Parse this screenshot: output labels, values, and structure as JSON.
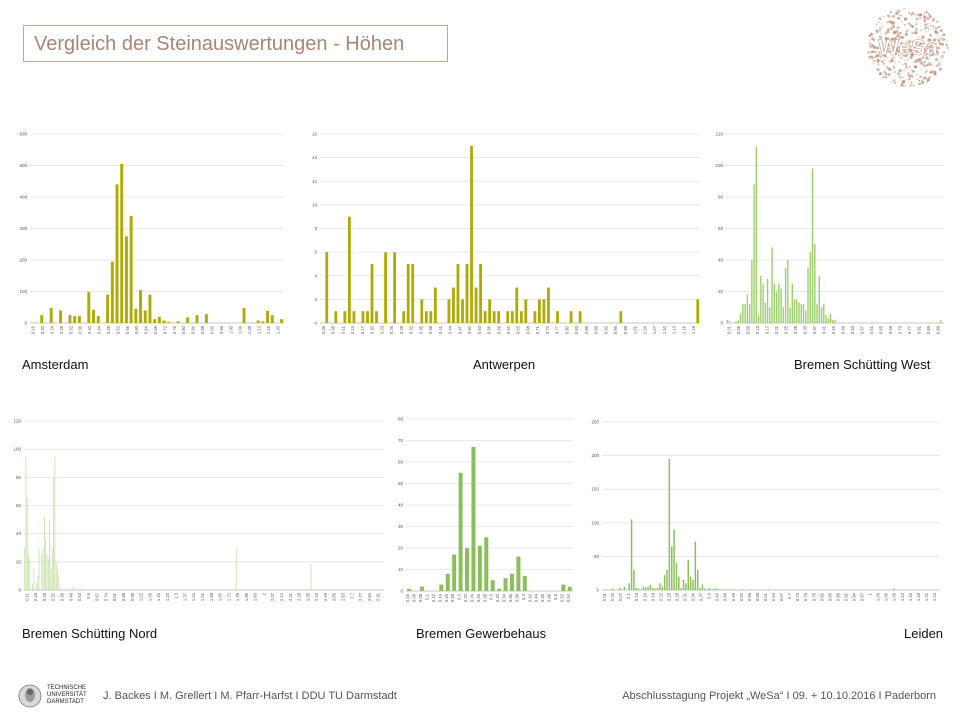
{
  "title": "Vergleich der Steinauswertungen - Höhen",
  "logo_text": "WeSa",
  "footer_left": "J. Backes I M. Grellert I M. Pfarr-Harfst I DDU TU Darmstadt",
  "footer_right": "Abschlusstagung Projekt „WeSa“ I 09. + 10.10.2016 I Paderborn",
  "university_logo_text": [
    "TECHNISCHE",
    "UNIVERSITÄT",
    "DARMSTADT"
  ],
  "colors": {
    "olive": "#b0aa05",
    "light_green": "#9ccf6c",
    "mid_green": "#8bbf5a",
    "title": "#a98477",
    "logo": "#c49a88"
  },
  "chart_data": [
    {
      "type": "bar",
      "title": "Amsterdam",
      "color": "#b0aa05",
      "ylim": [
        0,
        600
      ],
      "yticks": [
        0,
        100,
        200,
        300,
        400,
        500,
        600
      ],
      "grid": true,
      "xtick_labels": [
        "0.16",
        "0.20",
        "0.24",
        "0.28",
        "0.32",
        "0.36",
        "0.40",
        "0.44",
        "0.48",
        "0.52",
        "0.56",
        "0.60",
        "0.64",
        "0.68",
        "0.72",
        "0.76",
        "0.80",
        "0.84",
        "0.88",
        "0.92",
        "0.96",
        "1.00",
        "1.04",
        "1.08",
        "1.12",
        "1.16",
        "1.20"
      ],
      "values": [
        0,
        0,
        25,
        0,
        48,
        0,
        40,
        0,
        25,
        22,
        22,
        0,
        98,
        42,
        22,
        0,
        90,
        195,
        440,
        505,
        275,
        340,
        45,
        105,
        40,
        90,
        12,
        20,
        8,
        3,
        0,
        5,
        0,
        18,
        0,
        25,
        0,
        28,
        0,
        0,
        0,
        0,
        0,
        0,
        0,
        48,
        0,
        0,
        8,
        5,
        38,
        25,
        0,
        12
      ]
    },
    {
      "type": "bar",
      "title": "Antwerpen",
      "color": "#b0aa05",
      "ylim": [
        0,
        16
      ],
      "yticks": [
        0,
        2,
        4,
        6,
        8,
        10,
        12,
        14,
        16
      ],
      "grid": true,
      "xtick_labels": [
        "0.06",
        "0.08",
        "0.11",
        "0.14",
        "0.17",
        "0.20",
        "0.23",
        "0.26",
        "0.29",
        "0.32",
        "0.35",
        "0.38",
        "0.41",
        "0.44",
        "0.47",
        "0.50",
        "0.53",
        "0.56",
        "0.59",
        "0.62",
        "0.65",
        "0.68",
        "0.71",
        "0.74",
        "0.77",
        "0.80",
        "0.83",
        "0.86",
        "0.89",
        "0.92",
        "0.95",
        "0.98",
        "1.01",
        "1.04",
        "1.07",
        "1.10",
        "1.13",
        "1.16",
        "1.19"
      ],
      "values": [
        0,
        6,
        0,
        1,
        0,
        1,
        9,
        1,
        0,
        1,
        1,
        5,
        1,
        0,
        6,
        0,
        6,
        0,
        1,
        5,
        5,
        0,
        2,
        1,
        1,
        3,
        0,
        0,
        2,
        3,
        5,
        2,
        5,
        15,
        3,
        5,
        1,
        2,
        1,
        1,
        0,
        1,
        1,
        3,
        1,
        2,
        0,
        1,
        2,
        2,
        3,
        0,
        1,
        0,
        0,
        1,
        0,
        1,
        0,
        0,
        0,
        0,
        0,
        0,
        0,
        0,
        1,
        0,
        0,
        0,
        0,
        0,
        0,
        0,
        0,
        0,
        0,
        0,
        0,
        0,
        0,
        0,
        0,
        2
      ]
    },
    {
      "type": "bar",
      "title": "Bremen Schütting West",
      "color": "#9ccf6c",
      "ylim": [
        0,
        120
      ],
      "yticks": [
        0,
        20,
        40,
        60,
        80,
        100,
        120
      ],
      "grid": true,
      "xtick_labels": [
        "0.01",
        "0.05",
        "0.09",
        "0.13",
        "0.17",
        "0.21",
        "0.25",
        "0.29",
        "0.33",
        "0.37",
        "0.41",
        "0.45",
        "0.49",
        "0.53",
        "0.57",
        "0.61",
        "0.65",
        "0.69",
        "0.73",
        "0.77",
        "0.81",
        "0.85",
        "0.89"
      ],
      "values": [
        2,
        1,
        0,
        0,
        1,
        2,
        6,
        12,
        12,
        18,
        12,
        40,
        88,
        112,
        5,
        30,
        25,
        13,
        28,
        10,
        48,
        25,
        20,
        25,
        22,
        10,
        35,
        40,
        10,
        25,
        15,
        15,
        13,
        12,
        12,
        8,
        35,
        45,
        98,
        50,
        12,
        30,
        10,
        12,
        5,
        3,
        6,
        2,
        2,
        0,
        0,
        0,
        0,
        0,
        0,
        0,
        0,
        0,
        0,
        0,
        0,
        0,
        0,
        0,
        0,
        0,
        0,
        0,
        0,
        0,
        0,
        0,
        0,
        0,
        0,
        0,
        0,
        0,
        0,
        0,
        0,
        0,
        0,
        0,
        0,
        0,
        0,
        0,
        0,
        0,
        0,
        0,
        0,
        0,
        0,
        2,
        0
      ]
    },
    {
      "type": "bar",
      "title": "Bremen Schütting Nord",
      "color": "#c5e0a5",
      "ylim": [
        0,
        120
      ],
      "yticks": [
        0,
        20,
        40,
        60,
        80,
        100,
        120
      ],
      "grid": true,
      "xtick_labels": [
        "0.11",
        "0.18",
        "0.25",
        "0.32",
        "0.39",
        "0.46",
        "0.53",
        "0.6",
        "0.67",
        "0.74",
        "0.81",
        "0.88",
        "0.95",
        "1.02",
        "1.09",
        "1.16",
        "1.23",
        "1.3",
        "1.37",
        "1.44",
        "1.51",
        "1.58",
        "1.65",
        "1.72",
        "1.79",
        "1.86",
        "1.93",
        "2",
        "2.07",
        "2.14",
        "2.21",
        "2.28",
        "2.35",
        "2.42",
        "2.49",
        "2.56",
        "2.63",
        "2.7",
        "2.77",
        "2.84",
        "2.91"
      ],
      "values": [
        30,
        95,
        65,
        25,
        20,
        0,
        4,
        15,
        0,
        5,
        10,
        30,
        0,
        25,
        30,
        52,
        35,
        25,
        22,
        50,
        15,
        30,
        80,
        95,
        20,
        15,
        10,
        0,
        1,
        0,
        1,
        0,
        0,
        1,
        1,
        0,
        0,
        3,
        0,
        0,
        0,
        0,
        0,
        1,
        1,
        0,
        0,
        0,
        0,
        0,
        0,
        0,
        0,
        0,
        0,
        0,
        0,
        0,
        0,
        0,
        0,
        0,
        0,
        0,
        0,
        0,
        0,
        0,
        0,
        0,
        0,
        0,
        0,
        0,
        0,
        0,
        0,
        0,
        0,
        0,
        0,
        0,
        0,
        0,
        0,
        0,
        0,
        0,
        0,
        0,
        0,
        0,
        0,
        0,
        0,
        0,
        0,
        0,
        0,
        0,
        0,
        0,
        0,
        0,
        0,
        0,
        0,
        0,
        0,
        0,
        0,
        0,
        0,
        0,
        0,
        0,
        0,
        0,
        0,
        0,
        0,
        0,
        0,
        0,
        0,
        0,
        0,
        0,
        0,
        0,
        0,
        0,
        0,
        0,
        0,
        0,
        0,
        0,
        0,
        0,
        0,
        0,
        0,
        0,
        0,
        0,
        0,
        0,
        0,
        0,
        0,
        0,
        0,
        0,
        0,
        0,
        0,
        0,
        0,
        0,
        0,
        30,
        0,
        0,
        0,
        0,
        0,
        0,
        0,
        0,
        0,
        0,
        0,
        0,
        0,
        0,
        0,
        0,
        0,
        0,
        0,
        0,
        0,
        0,
        0,
        0,
        0,
        0,
        0,
        0,
        0,
        0,
        0,
        0,
        0,
        0,
        0,
        0,
        0,
        0,
        0,
        0,
        0,
        0,
        0,
        0,
        0,
        0,
        0,
        0,
        0,
        0,
        0,
        0,
        0,
        0,
        0,
        0,
        18,
        0,
        0,
        0,
        0,
        0,
        0,
        0,
        0,
        0,
        0,
        0,
        0,
        0,
        0,
        0,
        0,
        0,
        0,
        0,
        0,
        0,
        0,
        0,
        0,
        0,
        0,
        0,
        0,
        0,
        0,
        0,
        0,
        0,
        0,
        0,
        0,
        0,
        0,
        0,
        0,
        0,
        0,
        0,
        0,
        0,
        0,
        0,
        0,
        0,
        0,
        0,
        0,
        0,
        0,
        0
      ]
    },
    {
      "type": "bar",
      "title": "Bremen Gewerbehaus",
      "color": "#8bbf5a",
      "ylim": [
        0,
        80
      ],
      "yticks": [
        0,
        10,
        20,
        30,
        40,
        50,
        60,
        70,
        80
      ],
      "grid": true,
      "xtick_labels": [
        "0.04",
        "0.06",
        "0.08",
        "0.1",
        "0.12",
        "0.14",
        "0.16",
        "0.18",
        "0.2",
        "0.22",
        "0.24",
        "0.26",
        "0.28",
        "0.3",
        "0.32",
        "0.34",
        "0.36",
        "0.38",
        "0.4",
        "0.42",
        "0.44",
        "0.46",
        "0.48",
        "0.5",
        "0.52",
        "0.54"
      ],
      "values": [
        1,
        0,
        2,
        0,
        0,
        3,
        8,
        17,
        55,
        20,
        67,
        21,
        25,
        5,
        1,
        6,
        8,
        16,
        7,
        0,
        0,
        0,
        0,
        0,
        3,
        2
      ]
    },
    {
      "type": "bar",
      "title": "Leiden",
      "color": "#8bbf5a",
      "ylim": [
        0,
        250
      ],
      "yticks": [
        0,
        50,
        100,
        150,
        200,
        250
      ],
      "grid": true,
      "xtick_labels": [
        "0.01",
        "0.04",
        "0.07",
        "0.1",
        "0.13",
        "0.16",
        "0.19",
        "0.22",
        "0.25",
        "0.28",
        "0.31",
        "0.34",
        "0.37",
        "0.4",
        "0.43",
        "0.46",
        "0.49",
        "0.52",
        "0.55",
        "0.58",
        "0.61",
        "0.64",
        "0.67",
        "0.7",
        "0.73",
        "0.76",
        "0.79",
        "0.82",
        "0.85",
        "0.88",
        "0.91",
        "0.94",
        "0.97",
        "1",
        "1.03",
        "1.06",
        "1.09",
        "1.12",
        "1.15",
        "1.18",
        "1.21",
        "1.24"
      ],
      "values": [
        0,
        1,
        0,
        0,
        2,
        0,
        0,
        3,
        0,
        5,
        0,
        10,
        105,
        30,
        3,
        2,
        1,
        5,
        4,
        5,
        8,
        3,
        2,
        3,
        10,
        5,
        22,
        30,
        195,
        65,
        90,
        40,
        20,
        3,
        15,
        10,
        45,
        20,
        15,
        72,
        30,
        3,
        8,
        2,
        1,
        3,
        1,
        2,
        2,
        1,
        1,
        1,
        0,
        1,
        0,
        1,
        0,
        0,
        0,
        1,
        0,
        0,
        1,
        0,
        0,
        0,
        0,
        0,
        0,
        0,
        1,
        0,
        0,
        0,
        0,
        0,
        0,
        0,
        0,
        0,
        0,
        0,
        0,
        0,
        0,
        0,
        0,
        0,
        0,
        0,
        0,
        0,
        0,
        0,
        0,
        0,
        0,
        0,
        0,
        0,
        0,
        0,
        0,
        0,
        0,
        0,
        0,
        0,
        0,
        0,
        0,
        0,
        0,
        0,
        0,
        0,
        0,
        0,
        0,
        0,
        0,
        0,
        0,
        2,
        0,
        0,
        0,
        0,
        0,
        0,
        0,
        0,
        0,
        0,
        0,
        0,
        0,
        0,
        0,
        0,
        0,
        0,
        0
      ]
    }
  ]
}
